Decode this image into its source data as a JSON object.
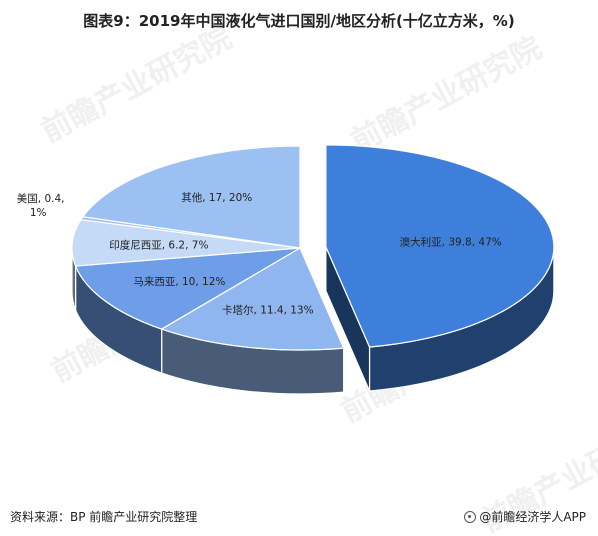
{
  "title": "图表9：2019年中国液化气进口国别/地区分析(十亿立方米，%)",
  "footer": {
    "source": "资料来源：BP  前瞻产业研究院整理",
    "brand": "@前瞻经济学人APP"
  },
  "watermark": "前瞻产业研究院",
  "chart_data": {
    "type": "pie",
    "style": "3d-exploded",
    "title": "图表9：2019年中国液化气进口国别/地区分析(十亿立方米，%)",
    "slices": [
      {
        "label": "澳大利亚",
        "value": 39.8,
        "percent": 47,
        "text": "澳大利亚, 39.8, 47%",
        "color": "#3f7fdc"
      },
      {
        "label": "卡塔尔",
        "value": 11.4,
        "percent": 13,
        "text": "卡塔尔, 11.4, 13%",
        "color": "#8fb6ee"
      },
      {
        "label": "马来西亚",
        "value": 10,
        "percent": 12,
        "text": "马来西亚, 10, 12%",
        "color": "#6e9ee8"
      },
      {
        "label": "印度尼西亚",
        "value": 6.2,
        "percent": 7,
        "text": "印度尼西亚, 6.2, 7%",
        "color": "#c4daf7"
      },
      {
        "label": "美国",
        "value": 0.4,
        "percent": 1,
        "text": "美国, 0.4, 1%",
        "color": "#9dbff0"
      },
      {
        "label": "其他",
        "value": 17,
        "percent": 20,
        "text": "其他, 17, 20%",
        "color": "#9cc0f2"
      }
    ]
  }
}
